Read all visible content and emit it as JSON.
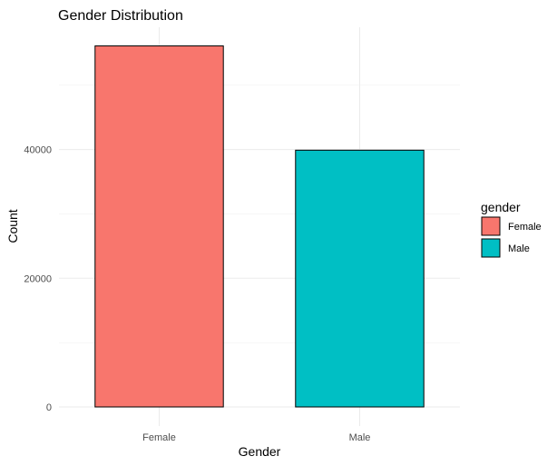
{
  "chart_data": {
    "type": "bar",
    "title": "Gender Distribution",
    "xlabel": "Gender",
    "ylabel": "Count",
    "categories": [
      "Female",
      "Male"
    ],
    "values": [
      56100,
      39900
    ],
    "colors": [
      "#F8766D",
      "#00BFC4"
    ],
    "ylim": [
      0,
      59000
    ],
    "yticks": [
      0,
      20000,
      40000
    ],
    "ytick_labels": [
      "0",
      "20000",
      "40000"
    ],
    "grid": true,
    "legend": {
      "title": "gender",
      "placement": "right",
      "entries": [
        "Female",
        "Male"
      ]
    }
  }
}
